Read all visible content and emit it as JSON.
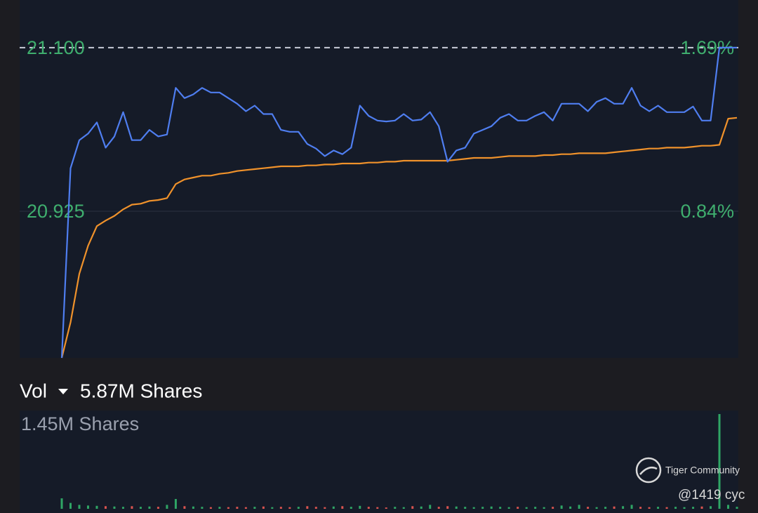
{
  "chart_data": [
    {
      "type": "line",
      "series": [
        {
          "name": "Price",
          "color": "#4f7ef0",
          "values": [
            20.768,
            20.971,
            21.001,
            21.008,
            21.02,
            20.993,
            21.005,
            21.031,
            21.001,
            21.001,
            21.012,
            21.005,
            21.007,
            21.057,
            21.046,
            21.05,
            21.057,
            21.052,
            21.052,
            21.046,
            21.04,
            21.032,
            21.038,
            21.029,
            21.029,
            21.012,
            21.01,
            21.01,
            20.997,
            20.992,
            20.984,
            20.99,
            20.986,
            20.993,
            21.038,
            21.027,
            21.022,
            21.021,
            21.022,
            21.029,
            21.022,
            21.023,
            21.031,
            21.016,
            20.978,
            20.99,
            20.993,
            21.008,
            21.012,
            21.016,
            21.025,
            21.029,
            21.022,
            21.022,
            21.027,
            21.031,
            21.022,
            21.04,
            21.04,
            21.04,
            21.032,
            21.042,
            21.046,
            21.04,
            21.04,
            21.057,
            21.038,
            21.032,
            21.038,
            21.031,
            21.031,
            21.031,
            21.037,
            21.022,
            21.022,
            21.1,
            21.1,
            21.1
          ]
        },
        {
          "name": "Average",
          "color": "#f0922b",
          "values": [
            20.768,
            20.806,
            20.858,
            20.888,
            20.909,
            20.915,
            20.92,
            20.927,
            20.932,
            20.933,
            20.936,
            20.937,
            20.939,
            20.954,
            20.959,
            20.961,
            20.963,
            20.963,
            20.965,
            20.966,
            20.968,
            20.969,
            20.97,
            20.971,
            20.972,
            20.973,
            20.973,
            20.973,
            20.974,
            20.974,
            20.975,
            20.975,
            20.976,
            20.976,
            20.976,
            20.977,
            20.977,
            20.978,
            20.978,
            20.979,
            20.979,
            20.979,
            20.979,
            20.979,
            20.979,
            20.98,
            20.981,
            20.982,
            20.982,
            20.982,
            20.983,
            20.984,
            20.984,
            20.984,
            20.984,
            20.985,
            20.985,
            20.986,
            20.986,
            20.987,
            20.987,
            20.987,
            20.987,
            20.988,
            20.989,
            20.99,
            20.991,
            20.992,
            20.992,
            20.993,
            20.993,
            20.993,
            20.994,
            20.995,
            20.995,
            20.996,
            21.024,
            21.025
          ]
        }
      ],
      "ylim": [
        20.768,
        21.151
      ],
      "yticks": [
        {
          "value": 21.1,
          "label": "21.100"
        },
        20.925
      ],
      "y2lim": [
        0.078,
        1.938
      ],
      "y2ticks": [
        {
          "value": 1.69,
          "label": "1.69%"
        },
        {
          "value": 0.84,
          "label": "0.84%"
        }
      ],
      "grid": true
    },
    {
      "type": "bar",
      "title": "Vol",
      "subtitle": "5.87M Shares",
      "up_color": "#2fa565",
      "down_color": "#d9534f",
      "values": [
        160000,
        90000,
        60000,
        50000,
        45000,
        40000,
        35000,
        30000,
        40000,
        30000,
        35000,
        30000,
        60000,
        150000,
        40000,
        35000,
        30000,
        25000,
        30000,
        25000,
        30000,
        25000,
        30000,
        35000,
        25000,
        30000,
        25000,
        30000,
        40000,
        30000,
        25000,
        35000,
        40000,
        30000,
        45000,
        30000,
        25000,
        20000,
        30000,
        25000,
        40000,
        35000,
        60000,
        30000,
        40000,
        35000,
        30000,
        25000,
        30000,
        35000,
        30000,
        25000,
        30000,
        25000,
        30000,
        25000,
        30000,
        50000,
        35000,
        60000,
        30000,
        25000,
        30000,
        35000,
        40000,
        60000,
        30000,
        25000,
        30000,
        25000,
        30000,
        25000,
        30000,
        35000,
        40000,
        1450000,
        60000,
        30000
      ],
      "ylim": [
        0,
        1450000
      ],
      "yticks": [
        {
          "value": 1450000,
          "label": "1.45M Shares"
        }
      ]
    }
  ],
  "watermark": {
    "brand": "Tiger Community",
    "user": "@1419 cyc"
  }
}
